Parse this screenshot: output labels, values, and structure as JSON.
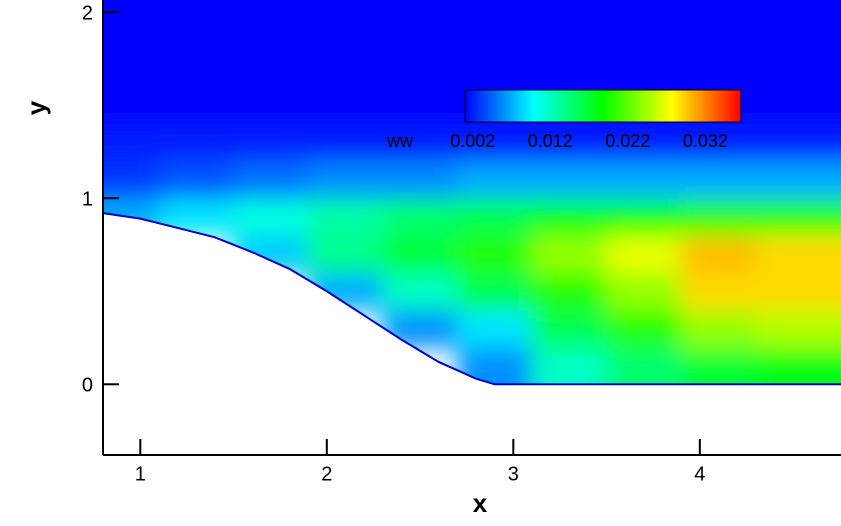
{
  "chart_data": {
    "type": "heatmap",
    "x_label": "x",
    "y_label": "y",
    "xlim": [
      0.8,
      4.757
    ],
    "ylim": [
      -0.38,
      2.065
    ],
    "xticks": [
      1,
      2,
      3,
      4
    ],
    "yticks": [
      0,
      1,
      2
    ],
    "x": [
      0.9,
      1.3,
      1.7,
      2.1,
      2.5,
      2.9,
      3.3,
      3.7,
      4.1,
      4.5
    ],
    "y": [
      0.1,
      0.3,
      0.5,
      0.7,
      0.9,
      1.1,
      1.3,
      1.5,
      1.7,
      1.9,
      2.1
    ],
    "z": [
      [
        null,
        null,
        null,
        null,
        null,
        0.006,
        0.012,
        0.015,
        0.017,
        0.018
      ],
      [
        null,
        null,
        null,
        null,
        0.006,
        0.009,
        0.016,
        0.02,
        0.024,
        0.025
      ],
      [
        null,
        null,
        null,
        0.007,
        0.012,
        0.016,
        0.02,
        0.024,
        0.029,
        0.029
      ],
      [
        null,
        null,
        0.008,
        0.014,
        0.017,
        0.02,
        0.024,
        0.027,
        0.03,
        0.029
      ],
      [
        0.007,
        0.009,
        0.011,
        0.013,
        0.015,
        0.016,
        0.018,
        0.019,
        0.02,
        0.02
      ],
      [
        0.003,
        0.004,
        0.005,
        0.006,
        0.006,
        0.007,
        0.007,
        0.007,
        0.007,
        0.007
      ],
      [
        0.002,
        0.002,
        0.002,
        0.002,
        0.002,
        0.002,
        0.002,
        0.002,
        0.002,
        0.002
      ],
      [
        0.001,
        0.001,
        0.001,
        0.001,
        0.001,
        0.001,
        0.001,
        0.001,
        0.001,
        0.001
      ],
      [
        0.001,
        0.001,
        0.001,
        0.001,
        0.001,
        0.001,
        0.001,
        0.001,
        0.001,
        0.001
      ],
      [
        0.001,
        0.001,
        0.001,
        0.001,
        0.001,
        0.001,
        0.001,
        0.001,
        0.001,
        0.001
      ],
      [
        0.001,
        0.001,
        0.001,
        0.001,
        0.001,
        0.001,
        0.001,
        0.001,
        0.001,
        0.001
      ]
    ],
    "wall_x": [
      0.8,
      1.0,
      1.2,
      1.4,
      1.6,
      1.8,
      2.0,
      2.2,
      2.4,
      2.6,
      2.8,
      2.9,
      4.757
    ],
    "wall_y": [
      0.92,
      0.89,
      0.84,
      0.79,
      0.71,
      0.62,
      0.5,
      0.37,
      0.24,
      0.12,
      0.03,
      0,
      0
    ],
    "wall_color": "#0000cc",
    "colorbar_title": "ww",
    "clim": [
      0.001,
      0.0366
    ],
    "cticks": [
      0.002,
      0.012,
      0.022,
      0.032
    ],
    "colorscale": [
      "#0000ff",
      "#00ffff",
      "#00ff00",
      "#ffff00",
      "#ff0000"
    ]
  }
}
